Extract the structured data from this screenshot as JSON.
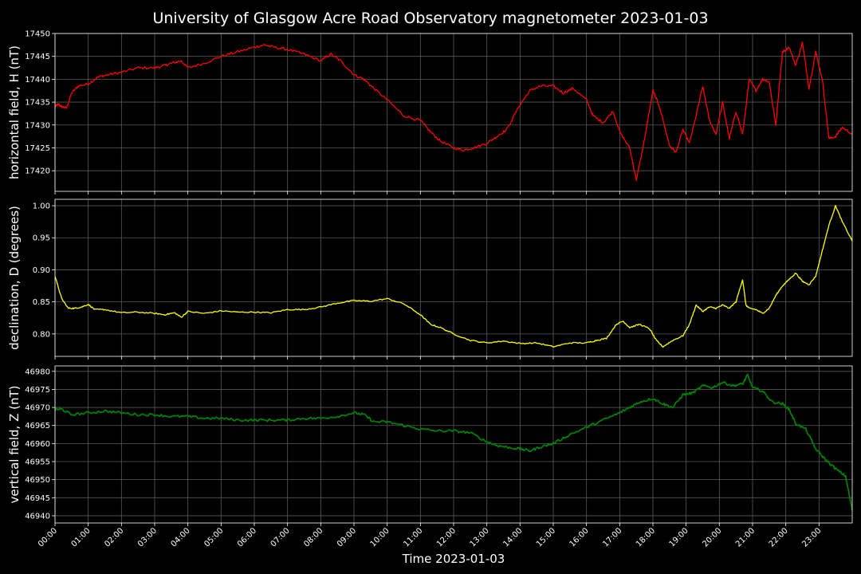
{
  "chart_data": {
    "title": "University of Glasgow Acre Road Observatory magnetometer 2023-01-03",
    "xlabel": "Time 2023-01-03",
    "x_tick_labels": [
      "00:00",
      "01:00",
      "02:00",
      "03:00",
      "04:00",
      "05:00",
      "06:00",
      "07:00",
      "08:00",
      "09:00",
      "10:00",
      "11:00",
      "12:00",
      "13:00",
      "14:00",
      "15:00",
      "16:00",
      "17:00",
      "18:00",
      "19:00",
      "20:00",
      "21:00",
      "22:00",
      "23:00"
    ],
    "xlim_hours": [
      0,
      24
    ],
    "grid": true,
    "panels": [
      {
        "type": "line",
        "ylabel": "horizontal field, H (nT)",
        "color": "#ff0000",
        "ylim": [
          17415.5,
          17450
        ],
        "yticks": [
          17420,
          17425,
          17430,
          17435,
          17440,
          17445,
          17450
        ],
        "x_hours": [
          0,
          0.1,
          0.2,
          0.35,
          0.5,
          0.7,
          1,
          1.3,
          1.6,
          2,
          2.5,
          3,
          3.3,
          3.5,
          3.8,
          4,
          4.5,
          5,
          5.5,
          6,
          6.3,
          6.6,
          7,
          7.5,
          8,
          8.3,
          8.6,
          9,
          9.3,
          9.6,
          10,
          10.5,
          11,
          11.3,
          11.6,
          12,
          12.3,
          12.6,
          13,
          13.3,
          13.6,
          14,
          14.3,
          14.6,
          15,
          15.3,
          15.6,
          16,
          16.2,
          16.5,
          16.8,
          17,
          17.3,
          17.5,
          17.7,
          18,
          18.2,
          18.5,
          18.7,
          18.9,
          19.1,
          19.3,
          19.5,
          19.7,
          19.9,
          20.1,
          20.3,
          20.5,
          20.7,
          20.9,
          21.1,
          21.3,
          21.5,
          21.7,
          21.9,
          22.1,
          22.3,
          22.5,
          22.7,
          22.9,
          23.1,
          23.3,
          23.5,
          23.7,
          24
        ],
        "values": [
          17434,
          17434.5,
          17434,
          17433.7,
          17437,
          17438.5,
          17439,
          17440.5,
          17441,
          17441.5,
          17442.5,
          17442.5,
          17443,
          17443.5,
          17444,
          17442.5,
          17443.5,
          17445,
          17446,
          17447,
          17447.5,
          17447,
          17446.5,
          17445.5,
          17444,
          17445.5,
          17444,
          17441,
          17440,
          17438,
          17435.5,
          17432,
          17431,
          17428.5,
          17426.5,
          17425,
          17424.5,
          17425,
          17426,
          17427.5,
          17429,
          17434.5,
          17437.5,
          17438.5,
          17438.5,
          17437,
          17438,
          17435.5,
          17432,
          17430.5,
          17433,
          17428.5,
          17425,
          17418,
          17425,
          17437.5,
          17434,
          17425.5,
          17424,
          17429,
          17426,
          17432,
          17438.5,
          17431,
          17428,
          17435,
          17427,
          17433,
          17428,
          17440,
          17437.5,
          17440,
          17439.5,
          17430,
          17446,
          17447,
          17443,
          17448,
          17438,
          17446,
          17440,
          17427,
          17427.5,
          17429.5,
          17428
        ]
      },
      {
        "type": "line",
        "ylabel": "declination, D (degrees)",
        "color": "#ffff00",
        "ylim": [
          0.765,
          1.01
        ],
        "yticks": [
          0.8,
          0.85,
          0.9,
          0.95,
          1.0
        ],
        "x_hours": [
          0,
          0.2,
          0.4,
          0.6,
          0.8,
          1,
          1.2,
          1.5,
          2,
          2.5,
          3,
          3.3,
          3.6,
          3.8,
          4,
          4.5,
          5,
          5.5,
          6,
          6.5,
          7,
          7.5,
          8,
          8.5,
          9,
          9.5,
          10,
          10.5,
          11,
          11.3,
          11.6,
          12,
          12.5,
          13,
          13.5,
          14,
          14.5,
          15,
          15.5,
          16,
          16.3,
          16.6,
          16.9,
          17.1,
          17.3,
          17.6,
          17.9,
          18.1,
          18.3,
          18.6,
          18.9,
          19.1,
          19.3,
          19.5,
          19.7,
          19.9,
          20.1,
          20.3,
          20.5,
          20.7,
          20.8,
          20.9,
          21.1,
          21.3,
          21.5,
          21.7,
          21.9,
          22.1,
          22.3,
          22.5,
          22.7,
          22.9,
          23.1,
          23.3,
          23.5,
          23.7,
          24
        ],
        "values": [
          0.89,
          0.855,
          0.84,
          0.84,
          0.842,
          0.846,
          0.838,
          0.838,
          0.833,
          0.834,
          0.832,
          0.83,
          0.833,
          0.826,
          0.835,
          0.832,
          0.836,
          0.834,
          0.834,
          0.833,
          0.838,
          0.838,
          0.842,
          0.848,
          0.852,
          0.851,
          0.855,
          0.847,
          0.83,
          0.815,
          0.81,
          0.8,
          0.79,
          0.786,
          0.789,
          0.785,
          0.786,
          0.78,
          0.786,
          0.786,
          0.79,
          0.793,
          0.815,
          0.82,
          0.81,
          0.815,
          0.808,
          0.79,
          0.78,
          0.79,
          0.797,
          0.815,
          0.845,
          0.835,
          0.842,
          0.84,
          0.845,
          0.84,
          0.85,
          0.885,
          0.845,
          0.84,
          0.838,
          0.832,
          0.84,
          0.86,
          0.875,
          0.885,
          0.895,
          0.882,
          0.877,
          0.89,
          0.93,
          0.97,
          1.0,
          0.975,
          0.945
        ]
      },
      {
        "type": "line",
        "ylabel": "vertical field, Z (nT)",
        "color": "#008000",
        "ylim": [
          46938,
          46981.5
        ],
        "yticks": [
          46940,
          46945,
          46950,
          46955,
          46960,
          46965,
          46970,
          46975,
          46980
        ],
        "x_hours": [
          0,
          0.2,
          0.5,
          1,
          1.5,
          2,
          2.5,
          3,
          3.5,
          4,
          4.5,
          5,
          5.5,
          6,
          6.5,
          7,
          7.5,
          8,
          8.5,
          9,
          9.3,
          9.6,
          10,
          10.5,
          11,
          11.5,
          12,
          12.5,
          13,
          13.3,
          13.6,
          14,
          14.3,
          14.6,
          15,
          15.5,
          16,
          16.5,
          17,
          17.3,
          17.6,
          18,
          18.3,
          18.6,
          18.9,
          19.2,
          19.5,
          19.8,
          20.1,
          20.4,
          20.7,
          20.85,
          21,
          21.3,
          21.6,
          21.9,
          22.1,
          22.3,
          22.6,
          22.9,
          23.2,
          23.5,
          23.8,
          24
        ],
        "values": [
          46969.5,
          46969.5,
          46968,
          46968.5,
          46969,
          46968.5,
          46968,
          46968,
          46967.5,
          46967.5,
          46967,
          46967,
          46966.5,
          46966.5,
          46966.5,
          46966.5,
          46967,
          46967,
          46967.5,
          46968.5,
          46968,
          46966,
          46966,
          46965,
          46964,
          46963.5,
          46963.5,
          46963,
          46960.5,
          46959.5,
          46959,
          46958.5,
          46958,
          46959,
          46960,
          46962.5,
          46964.5,
          46966.5,
          46968.5,
          46970,
          46971.5,
          46972.5,
          46971,
          46970,
          46973.5,
          46974,
          46976,
          46975.5,
          46977,
          46976,
          46976.5,
          46979,
          46975.5,
          46974.5,
          46971.5,
          46971,
          46969.5,
          46965.5,
          46964,
          46958.5,
          46955.5,
          46953,
          46951,
          46941.5
        ]
      }
    ]
  }
}
